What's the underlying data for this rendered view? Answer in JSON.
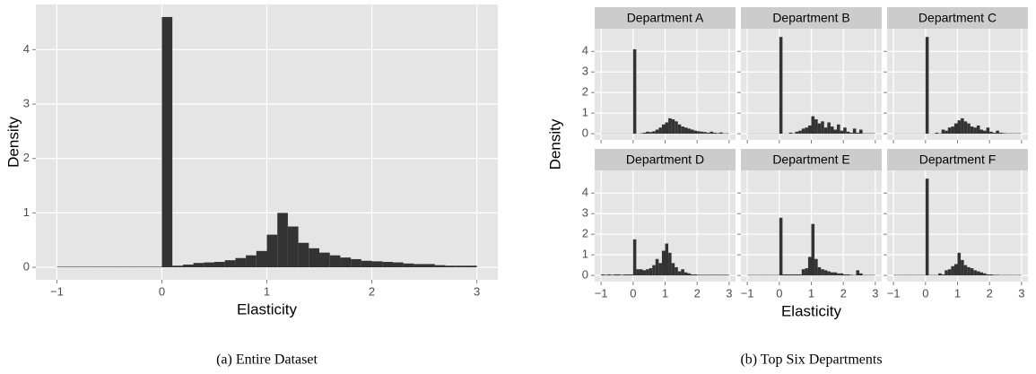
{
  "chart_data": [
    {
      "type": "histogram",
      "xlabel": "Elasticity",
      "ylabel": "Density",
      "caption": "(a) Entire Dataset",
      "color": "#333333",
      "grid": true,
      "bins": [
        -1,
        -0.9,
        -0.8,
        -0.7,
        -0.6,
        -0.5,
        -0.4,
        -0.3,
        -0.2,
        -0.1,
        0,
        0.1,
        0.2,
        0.3,
        0.4,
        0.5,
        0.6,
        0.7,
        0.8,
        0.9,
        1,
        1.1,
        1.2,
        1.3,
        1.4,
        1.5,
        1.6,
        1.7,
        1.8,
        1.9,
        2,
        2.1,
        2.2,
        2.3,
        2.4,
        2.5,
        2.6,
        2.7,
        2.8,
        2.9,
        3
      ],
      "values": [
        0.01,
        0.01,
        0.01,
        0.01,
        0.01,
        0.01,
        0.01,
        0.01,
        0.01,
        0.01,
        4.6,
        0.03,
        0.05,
        0.08,
        0.09,
        0.1,
        0.13,
        0.17,
        0.22,
        0.3,
        0.6,
        1.0,
        0.75,
        0.45,
        0.35,
        0.27,
        0.22,
        0.18,
        0.15,
        0.12,
        0.11,
        0.1,
        0.09,
        0.07,
        0.06,
        0.06,
        0.04,
        0.03,
        0.03,
        0.03
      ],
      "xlim": [
        -1.2,
        3.2
      ],
      "ylim": [
        -0.23,
        4.83
      ],
      "xticks": [
        {
          "value": -1,
          "label": "−1"
        },
        0,
        1,
        2,
        3
      ],
      "yticks": [
        0,
        1,
        2,
        3,
        4
      ]
    },
    {
      "type": "histogram",
      "xlabel": "Elasticity",
      "ylabel": "Density",
      "caption": "(b) Top Six Departments",
      "color": "#333333",
      "grid": true,
      "bins": [
        -1,
        -0.9,
        -0.8,
        -0.7,
        -0.6,
        -0.5,
        -0.4,
        -0.3,
        -0.2,
        -0.1,
        0,
        0.1,
        0.2,
        0.3,
        0.4,
        0.5,
        0.6,
        0.7,
        0.8,
        0.9,
        1,
        1.1,
        1.2,
        1.3,
        1.4,
        1.5,
        1.6,
        1.7,
        1.8,
        1.9,
        2,
        2.1,
        2.2,
        2.3,
        2.4,
        2.5,
        2.6,
        2.7,
        2.8,
        2.9,
        3
      ],
      "xlim": [
        -1.2,
        3.2
      ],
      "ylim": [
        -0.3,
        5.1
      ],
      "xticks": [
        {
          "value": -1,
          "label": "−1"
        },
        0,
        1,
        2,
        3
      ],
      "yticks": [
        0,
        1,
        2,
        3,
        4
      ],
      "facets": [
        {
          "title": "Department A",
          "values": [
            0.01,
            0.01,
            0.01,
            0.01,
            0.01,
            0.01,
            0.01,
            0.01,
            0.01,
            0.01,
            4.1,
            0.01,
            0.02,
            0.05,
            0.1,
            0.08,
            0.12,
            0.2,
            0.3,
            0.45,
            0.55,
            0.75,
            0.7,
            0.6,
            0.45,
            0.35,
            0.3,
            0.25,
            0.2,
            0.15,
            0.12,
            0.1,
            0.08,
            0.05,
            0.1,
            0.05,
            0.03,
            0.06,
            0.02,
            0.02
          ]
        },
        {
          "title": "Department B",
          "values": [
            0.01,
            0.01,
            0.01,
            0.01,
            0.01,
            0.01,
            0.01,
            0.01,
            0.01,
            0.01,
            4.7,
            0.01,
            0.01,
            0.05,
            0.02,
            0.1,
            0.15,
            0.25,
            0.3,
            0.4,
            0.85,
            0.7,
            0.5,
            0.6,
            0.3,
            0.55,
            0.35,
            0.2,
            0.45,
            0.15,
            0.3,
            0.1,
            0.05,
            0.25,
            0.05,
            0.2,
            0.02,
            0.02,
            0.02,
            0.02
          ]
        },
        {
          "title": "Department C",
          "values": [
            0.01,
            0.01,
            0.01,
            0.01,
            0.01,
            0.01,
            0.01,
            0.01,
            0.01,
            0.01,
            4.7,
            0.01,
            0.01,
            0.05,
            0.02,
            0.2,
            0.15,
            0.3,
            0.35,
            0.5,
            0.65,
            0.75,
            0.6,
            0.5,
            0.35,
            0.3,
            0.4,
            0.2,
            0.15,
            0.3,
            0.1,
            0.05,
            0.15,
            0.05,
            0.03,
            0.02,
            0.02,
            0.02,
            0.02,
            0.02
          ]
        },
        {
          "title": "Department D",
          "values": [
            0.05,
            0.03,
            0.05,
            0.03,
            0.05,
            0.05,
            0.03,
            0.05,
            0.05,
            0.05,
            1.75,
            0.3,
            0.3,
            0.25,
            0.3,
            0.35,
            0.5,
            0.8,
            0.6,
            1.2,
            1.55,
            1.1,
            0.6,
            0.4,
            0.2,
            0.3,
            0.15,
            0.1,
            0.05,
            0.05,
            0.03,
            0.03,
            0.03,
            0.03,
            0.03,
            0.03,
            0.03,
            0.03,
            0.03,
            0.03
          ]
        },
        {
          "title": "Department E",
          "values": [
            0.02,
            0.02,
            0.02,
            0.02,
            0.02,
            0.02,
            0.02,
            0.02,
            0.02,
            0.02,
            2.8,
            0.05,
            0.05,
            0.05,
            0.05,
            0.05,
            0.05,
            0.3,
            0.35,
            0.9,
            2.5,
            0.8,
            0.4,
            0.3,
            0.25,
            0.2,
            0.15,
            0.15,
            0.1,
            0.1,
            0.05,
            0.05,
            0.03,
            0.02,
            0.25,
            0.1,
            0.02,
            0.02,
            0.02,
            0.02
          ]
        },
        {
          "title": "Department F",
          "values": [
            0.02,
            0.02,
            0.02,
            0.02,
            0.02,
            0.02,
            0.02,
            0.02,
            0.02,
            0.02,
            4.7,
            0.02,
            0.02,
            0.02,
            0.1,
            0.05,
            0.25,
            0.3,
            0.45,
            0.55,
            1.1,
            0.75,
            0.5,
            0.4,
            0.35,
            0.25,
            0.2,
            0.15,
            0.1,
            0.05,
            0.05,
            0.03,
            0.03,
            0.02,
            0.02,
            0.02,
            0.02,
            0.02,
            0.02,
            0.02
          ]
        }
      ]
    }
  ]
}
